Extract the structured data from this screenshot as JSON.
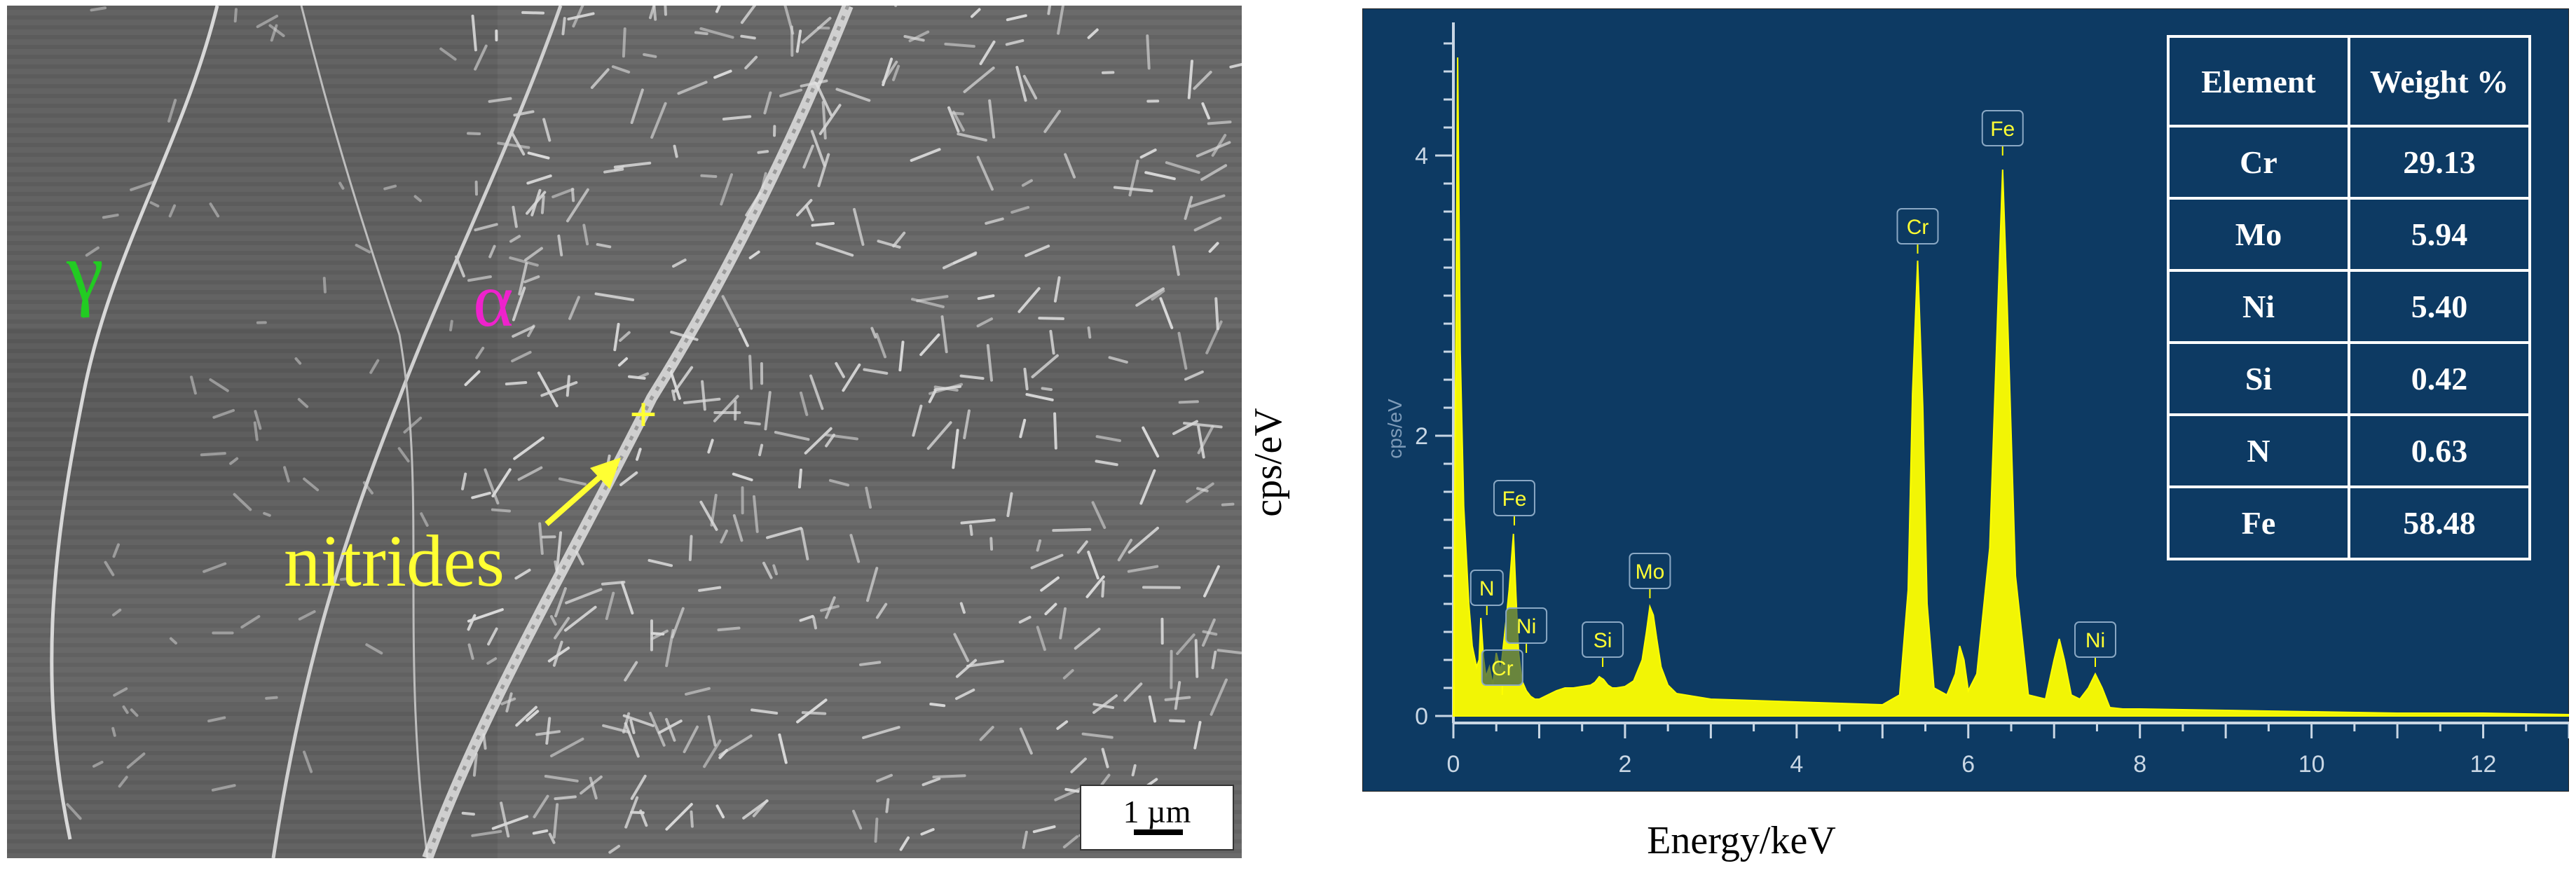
{
  "sem": {
    "gamma_label": "γ",
    "alpha_label": "α",
    "nitrides_label": "nitrides",
    "marker": "+",
    "scale_bar": "1 µm"
  },
  "spectrum_axis_text": "cps/eV",
  "chart_data": {
    "type": "line",
    "xlabel": "Energy/keV",
    "ylabel": "cps/eV",
    "xlim": [
      0,
      13
    ],
    "ylim": [
      0,
      4.8
    ],
    "xticks": [
      0,
      2,
      4,
      6,
      8,
      10,
      12
    ],
    "yticks": [
      0,
      2,
      4
    ],
    "grid": false,
    "background_color": "#0d3a63",
    "line_color": "#ffff00",
    "series": [
      {
        "x": [
          0.0,
          0.05,
          0.08,
          0.12,
          0.18,
          0.22,
          0.27,
          0.3,
          0.32,
          0.35,
          0.38,
          0.42,
          0.46,
          0.5,
          0.55,
          0.6,
          0.65,
          0.7,
          0.73,
          0.76,
          0.8,
          0.85,
          0.9,
          0.95,
          1.0,
          1.1,
          1.2,
          1.3,
          1.4,
          1.5,
          1.6,
          1.65,
          1.7,
          1.75,
          1.8,
          1.85,
          1.9,
          2.0,
          2.1,
          2.2,
          2.25,
          2.29,
          2.33,
          2.37,
          2.42,
          2.5,
          2.6,
          2.8,
          3.0,
          3.5,
          4.0,
          4.5,
          5.0,
          5.2,
          5.3,
          5.35,
          5.41,
          5.47,
          5.52,
          5.6,
          5.75,
          5.85,
          5.9,
          5.95,
          6.0,
          6.1,
          6.25,
          6.35,
          6.4,
          6.45,
          6.55,
          6.7,
          6.9,
          7.0,
          7.06,
          7.12,
          7.2,
          7.3,
          7.4,
          7.48,
          7.56,
          7.65,
          7.8,
          8.0,
          9.0,
          10.0,
          11.0,
          12.0,
          13.0
        ],
        "y": [
          0.0,
          4.7,
          2.6,
          1.5,
          0.8,
          0.5,
          0.35,
          0.4,
          0.7,
          0.42,
          0.28,
          0.35,
          0.22,
          0.45,
          0.32,
          0.6,
          0.9,
          1.3,
          0.85,
          0.45,
          0.25,
          0.18,
          0.14,
          0.12,
          0.12,
          0.15,
          0.18,
          0.2,
          0.2,
          0.21,
          0.22,
          0.24,
          0.28,
          0.26,
          0.22,
          0.2,
          0.2,
          0.21,
          0.25,
          0.4,
          0.6,
          0.78,
          0.72,
          0.55,
          0.35,
          0.22,
          0.16,
          0.14,
          0.12,
          0.11,
          0.1,
          0.09,
          0.08,
          0.15,
          0.9,
          2.3,
          3.25,
          2.2,
          0.8,
          0.2,
          0.15,
          0.3,
          0.5,
          0.4,
          0.18,
          0.3,
          1.2,
          3.0,
          3.9,
          3.0,
          1.0,
          0.15,
          0.12,
          0.4,
          0.55,
          0.4,
          0.15,
          0.12,
          0.2,
          0.3,
          0.2,
          0.06,
          0.05,
          0.05,
          0.04,
          0.03,
          0.02,
          0.02,
          0.01
        ]
      }
    ],
    "annotations": [
      {
        "label": "N",
        "x": 0.39,
        "y": 0.72
      },
      {
        "label": "Cr",
        "x": 0.57,
        "y": 0.15
      },
      {
        "label": "Fe",
        "x": 0.71,
        "y": 1.36
      },
      {
        "label": "Ni",
        "x": 0.85,
        "y": 0.45
      },
      {
        "label": "Si",
        "x": 1.74,
        "y": 0.35
      },
      {
        "label": "Mo",
        "x": 2.29,
        "y": 0.84
      },
      {
        "label": "Cr",
        "x": 5.41,
        "y": 3.3
      },
      {
        "label": "Fe",
        "x": 6.4,
        "y": 4.0
      },
      {
        "label": "Ni",
        "x": 7.48,
        "y": 0.35
      }
    ]
  },
  "table": {
    "header": {
      "element": "Element",
      "weight": "Weight %"
    },
    "rows": [
      {
        "element": "Cr",
        "weight": "29.13"
      },
      {
        "element": "Mo",
        "weight": "5.94"
      },
      {
        "element": "Ni",
        "weight": "5.40"
      },
      {
        "element": "Si",
        "weight": "0.42"
      },
      {
        "element": "N",
        "weight": "0.63"
      },
      {
        "element": "Fe",
        "weight": "58.48"
      }
    ]
  }
}
